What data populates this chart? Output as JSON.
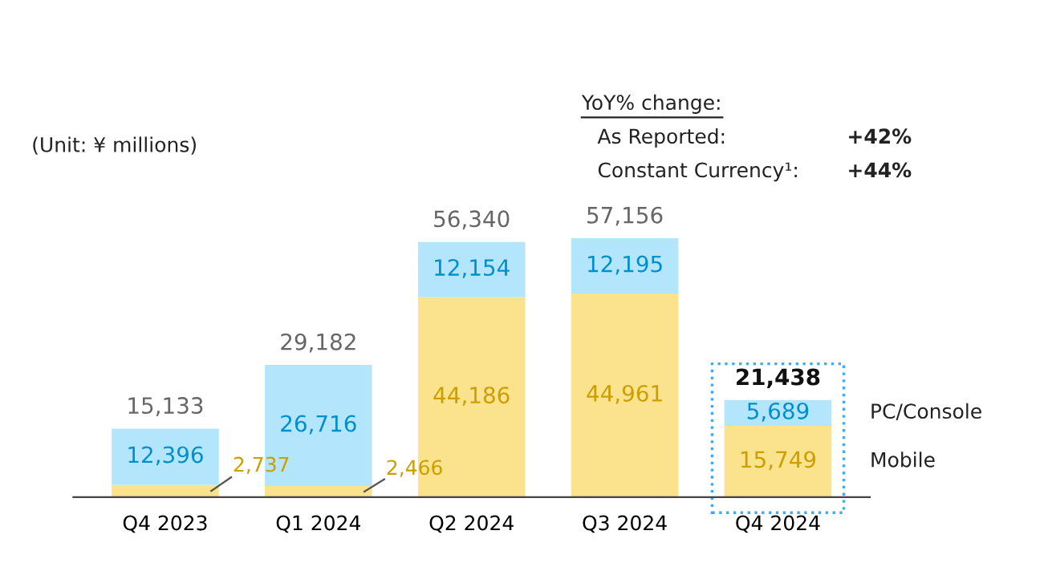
{
  "chart_data": {
    "type": "bar",
    "stacked": true,
    "categories": [
      "Q4 2023",
      "Q1 2024",
      "Q2 2024",
      "Q3 2024",
      "Q4 2024"
    ],
    "series": [
      {
        "name": "Mobile",
        "color": "#fbe28c",
        "values": [
          2737,
          2466,
          44186,
          44961,
          15749
        ],
        "value_labels": [
          "2,737",
          "2,466",
          "44,186",
          "44,961",
          "15,749"
        ]
      },
      {
        "name": "PC/Console",
        "color": "#b3e6fc",
        "values": [
          12396,
          26716,
          12154,
          12195,
          5689
        ],
        "value_labels": [
          "12,396",
          "26,716",
          "12,154",
          "12,195",
          "5,689"
        ]
      }
    ],
    "totals": [
      "15,133",
      "29,182",
      "56,340",
      "57,156",
      "21,438"
    ],
    "annotations": [
      "(Unit: ¥ millions)",
      "YoY% change:",
      "As Reported:",
      "+42%",
      "Constant Currency¹:",
      "+44%"
    ],
    "legend": "right",
    "grid": false
  }
}
